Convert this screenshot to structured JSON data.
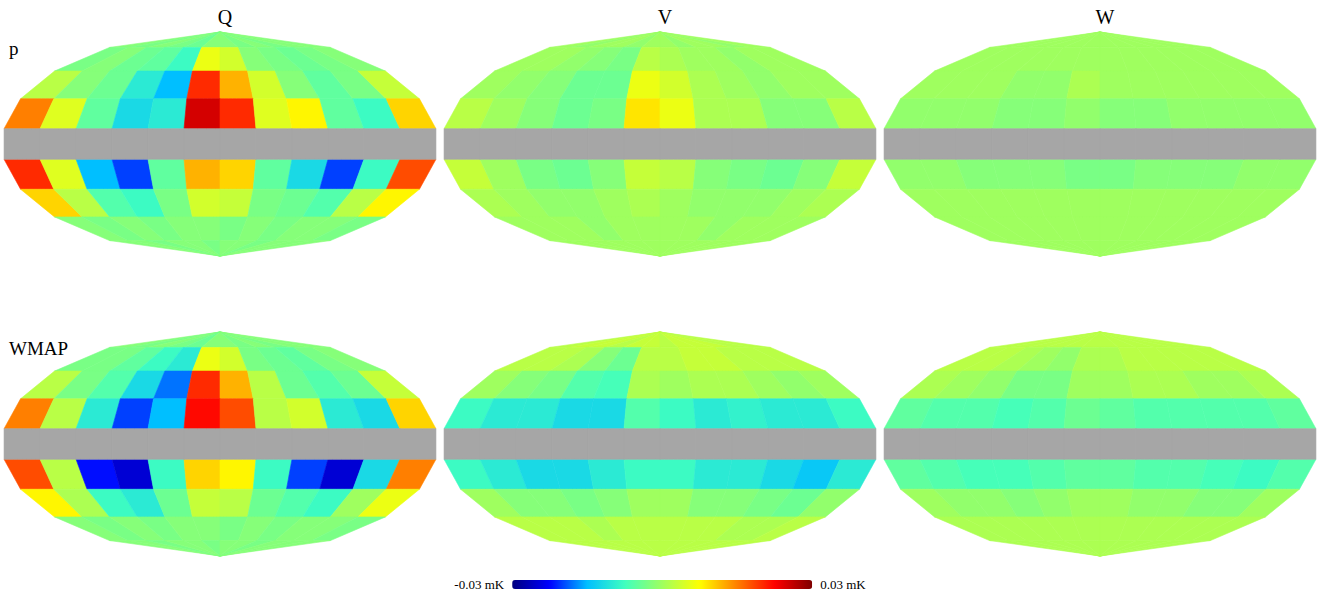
{
  "chart_data": {
    "type": "heatmap",
    "tick_labels": false,
    "column_titles": [
      "Q",
      "V",
      "W"
    ],
    "row_titles": [
      "p",
      "WMAP"
    ],
    "x": [
      165,
      135,
      105,
      75,
      45,
      15,
      -15,
      -45,
      -75,
      -105,
      -135,
      -165
    ],
    "y": [
      80,
      60,
      40,
      20,
      0,
      -20,
      -40,
      -60,
      -80
    ],
    "panels": [
      {
        "row": "p",
        "column": "Q",
        "values": [
          [
            -0.002,
            -0.003,
            -0.002,
            -0.003,
            -0.004,
            -0.002,
            -0.002,
            -0.003,
            -0.002,
            -0.003,
            -0.002,
            -0.002
          ],
          [
            -0.003,
            -0.002,
            -0.004,
            -0.005,
            -0.008,
            0.006,
            0.004,
            -0.002,
            -0.003,
            -0.004,
            -0.003,
            -0.002
          ],
          [
            0.002,
            -0.002,
            -0.004,
            -0.01,
            -0.015,
            0.02,
            0.012,
            0.004,
            -0.002,
            -0.005,
            -0.003,
            0.003
          ],
          [
            0.015,
            0.005,
            -0.005,
            -0.012,
            -0.01,
            0.025,
            0.02,
            0.005,
            0.008,
            -0.005,
            -0.008,
            0.01
          ],
          [
            null,
            null,
            null,
            null,
            null,
            null,
            null,
            null,
            null,
            null,
            null,
            null
          ],
          [
            0.02,
            0.005,
            -0.015,
            -0.02,
            -0.005,
            0.012,
            0.01,
            -0.005,
            -0.012,
            -0.02,
            -0.008,
            0.018
          ],
          [
            0.01,
            0.002,
            -0.006,
            -0.008,
            -0.003,
            0.004,
            0.003,
            -0.003,
            -0.004,
            -0.006,
            0.002,
            0.008
          ],
          [
            -0.002,
            -0.003,
            -0.002,
            -0.003,
            -0.002,
            -0.002,
            -0.003,
            -0.002,
            -0.003,
            -0.002,
            -0.002,
            -0.003
          ],
          [
            -0.002,
            -0.002,
            -0.003,
            -0.002,
            -0.002,
            -0.003,
            -0.002,
            -0.002,
            -0.003,
            -0.002,
            -0.002,
            -0.002
          ]
        ]
      },
      {
        "row": "p",
        "column": "V",
        "values": [
          [
            0,
            -0.001,
            0,
            0,
            -0.001,
            0,
            0,
            -0.001,
            0,
            0,
            -0.001,
            0
          ],
          [
            0,
            0,
            -0.001,
            -0.002,
            -0.003,
            0.002,
            0.001,
            0,
            0,
            -0.001,
            0,
            0
          ],
          [
            0,
            -0.001,
            -0.002,
            -0.004,
            -0.004,
            0.006,
            0.004,
            0.001,
            0,
            -0.001,
            0,
            0
          ],
          [
            0.002,
            0,
            -0.002,
            -0.004,
            -0.003,
            0.009,
            0.006,
            0.001,
            0.001,
            -0.002,
            -0.002,
            0.002
          ],
          [
            null,
            null,
            null,
            null,
            null,
            null,
            null,
            null,
            null,
            null,
            null,
            null
          ],
          [
            0.003,
            0,
            -0.003,
            -0.004,
            -0.002,
            0.003,
            0.002,
            -0.002,
            -0.003,
            -0.004,
            -0.002,
            0.003
          ],
          [
            0.001,
            0,
            -0.001,
            -0.001,
            0,
            0.001,
            0,
            -0.001,
            -0.001,
            -0.001,
            0,
            0.001
          ],
          [
            0,
            0,
            0,
            -0.001,
            0,
            0,
            0,
            0,
            -0.001,
            0,
            0,
            0
          ],
          [
            0,
            0,
            0,
            0,
            0,
            0,
            0,
            0,
            0,
            0,
            0,
            0
          ]
        ]
      },
      {
        "row": "p",
        "column": "W",
        "values": [
          [
            0,
            0,
            0,
            0,
            0,
            0,
            0,
            0,
            0,
            0,
            0,
            0
          ],
          [
            0,
            0,
            0,
            0,
            0,
            0,
            0,
            0,
            0,
            0,
            0,
            0
          ],
          [
            0,
            0,
            0,
            -0.001,
            -0.001,
            0.001,
            0,
            0,
            0,
            0,
            0,
            0
          ],
          [
            -0.001,
            -0.001,
            -0.001,
            -0.002,
            -0.002,
            -0.001,
            -0.002,
            -0.002,
            -0.001,
            -0.001,
            -0.001,
            -0.001
          ],
          [
            null,
            null,
            null,
            null,
            null,
            null,
            null,
            null,
            null,
            null,
            null,
            null
          ],
          [
            -0.001,
            -0.001,
            -0.002,
            -0.002,
            -0.002,
            -0.003,
            -0.003,
            -0.002,
            -0.002,
            -0.002,
            -0.001,
            -0.001
          ],
          [
            0,
            0,
            0,
            0,
            0,
            0,
            0,
            0,
            0,
            0,
            0,
            0
          ],
          [
            0,
            0,
            0,
            0,
            0,
            0,
            0,
            0,
            0,
            0,
            0,
            0
          ],
          [
            0,
            0,
            0,
            0,
            0,
            0,
            0,
            0,
            0,
            0,
            0,
            0
          ]
        ]
      },
      {
        "row": "WMAP",
        "column": "Q",
        "values": [
          [
            -0.002,
            -0.003,
            -0.002,
            -0.003,
            -0.004,
            -0.002,
            -0.002,
            -0.003,
            -0.002,
            -0.003,
            -0.002,
            -0.002
          ],
          [
            -0.003,
            -0.003,
            -0.005,
            -0.008,
            -0.01,
            0.006,
            0.004,
            -0.003,
            -0.004,
            -0.005,
            -0.003,
            -0.002
          ],
          [
            0.002,
            -0.003,
            -0.006,
            -0.012,
            -0.018,
            0.02,
            0.012,
            0.002,
            -0.004,
            -0.006,
            -0.004,
            0.003
          ],
          [
            0.015,
            0.002,
            -0.01,
            -0.02,
            -0.015,
            0.022,
            0.018,
            0.002,
            0.004,
            -0.01,
            -0.012,
            0.01
          ],
          [
            null,
            null,
            null,
            null,
            null,
            null,
            null,
            null,
            null,
            null,
            null,
            null
          ],
          [
            0.018,
            0.002,
            -0.022,
            -0.025,
            -0.008,
            0.01,
            0.008,
            -0.008,
            -0.02,
            -0.025,
            -0.012,
            0.015
          ],
          [
            0.008,
            0.001,
            -0.008,
            -0.01,
            -0.004,
            0.003,
            0.002,
            -0.004,
            -0.006,
            -0.008,
            0,
            0.006
          ],
          [
            -0.002,
            -0.003,
            -0.002,
            -0.003,
            -0.002,
            -0.002,
            -0.003,
            -0.002,
            -0.003,
            -0.002,
            -0.002,
            -0.003
          ],
          [
            -0.002,
            -0.002,
            -0.003,
            -0.002,
            -0.002,
            -0.003,
            -0.002,
            -0.002,
            -0.003,
            -0.002,
            -0.002,
            -0.002
          ]
        ]
      },
      {
        "row": "WMAP",
        "column": "V",
        "values": [
          [
            0.002,
            0.003,
            0.003,
            0.002,
            0.003,
            0.003,
            0.002,
            0.003,
            0.003,
            0.003,
            0.002,
            0.002
          ],
          [
            0.002,
            0.002,
            0.001,
            -0.002,
            -0.004,
            0.002,
            0.002,
            0.003,
            0.003,
            0.002,
            0.002,
            0.002
          ],
          [
            0,
            -0.002,
            -0.003,
            -0.006,
            -0.007,
            0.001,
            0,
            0.001,
            0.001,
            0,
            -0.001,
            0
          ],
          [
            -0.008,
            -0.01,
            -0.01,
            -0.012,
            -0.012,
            -0.006,
            -0.008,
            -0.01,
            -0.009,
            -0.01,
            -0.01,
            -0.008
          ],
          [
            null,
            null,
            null,
            null,
            null,
            null,
            null,
            null,
            null,
            null,
            null,
            null
          ],
          [
            -0.008,
            -0.01,
            -0.012,
            -0.012,
            -0.01,
            -0.008,
            -0.008,
            -0.01,
            -0.01,
            -0.012,
            -0.014,
            -0.01
          ],
          [
            0,
            -0.002,
            -0.002,
            -0.003,
            -0.002,
            0,
            0,
            -0.002,
            -0.002,
            -0.003,
            -0.004,
            -0.001
          ],
          [
            0.002,
            0.002,
            0.002,
            0.001,
            0.002,
            0.002,
            0.002,
            0.002,
            0.002,
            0.001,
            0.001,
            0.002
          ],
          [
            0.002,
            0.002,
            0.002,
            0.002,
            0.002,
            0.002,
            0.002,
            0.002,
            0.002,
            0.002,
            0.002,
            0.002
          ]
        ]
      },
      {
        "row": "WMAP",
        "column": "W",
        "values": [
          [
            0.002,
            0.002,
            0.002,
            0.002,
            0.002,
            0.002,
            0.002,
            0.002,
            0.002,
            0.002,
            0.002,
            0.002
          ],
          [
            0.002,
            0.002,
            0.001,
            0,
            -0.001,
            0.001,
            0.001,
            0.002,
            0.002,
            0.002,
            0.002,
            0.002
          ],
          [
            0.001,
            0,
            -0.001,
            -0.003,
            -0.003,
            0,
            0,
            0.001,
            0.001,
            0,
            0,
            0.001
          ],
          [
            -0.005,
            -0.006,
            -0.006,
            -0.007,
            -0.006,
            -0.004,
            -0.005,
            -0.006,
            -0.006,
            -0.006,
            -0.006,
            -0.005
          ],
          [
            null,
            null,
            null,
            null,
            null,
            null,
            null,
            null,
            null,
            null,
            null,
            null
          ],
          [
            -0.005,
            -0.006,
            -0.007,
            -0.007,
            -0.006,
            -0.005,
            -0.005,
            -0.006,
            -0.006,
            -0.007,
            -0.008,
            -0.006
          ],
          [
            0,
            -0.001,
            -0.001,
            -0.002,
            -0.001,
            0,
            0,
            -0.001,
            -0.001,
            -0.002,
            -0.002,
            0
          ],
          [
            0.001,
            0.001,
            0.001,
            0.001,
            0.001,
            0.001,
            0.001,
            0.001,
            0.001,
            0.001,
            0.001,
            0.001
          ],
          [
            0.001,
            0.001,
            0.001,
            0.001,
            0.001,
            0.001,
            0.001,
            0.001,
            0.001,
            0.001,
            0.001,
            0.001
          ]
        ]
      }
    ],
    "colorbar": {
      "range": [
        -0.03,
        0.03
      ],
      "ticks": [
        {
          "value": -0.03,
          "label": "-0.03 mK"
        },
        {
          "value": 0.03,
          "label": "0.03 mK"
        }
      ]
    }
  }
}
